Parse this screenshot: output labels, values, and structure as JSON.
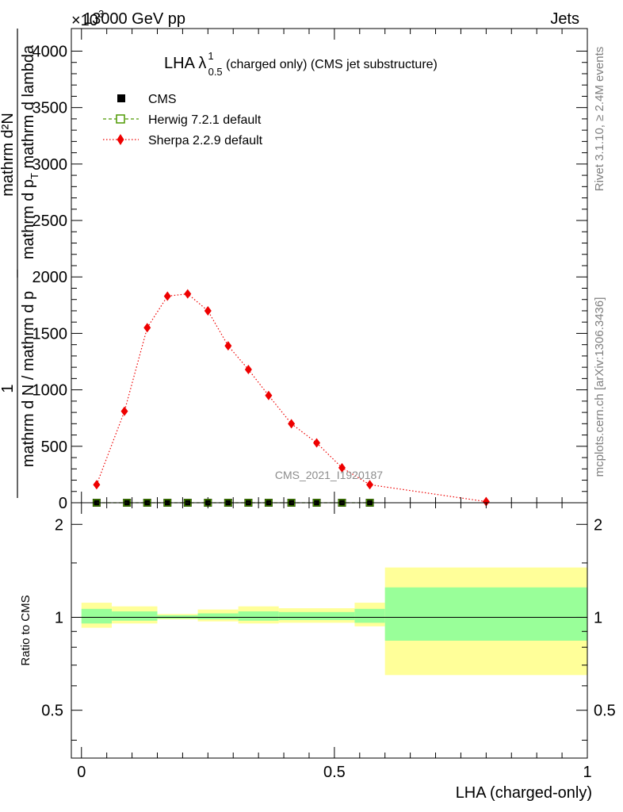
{
  "header": {
    "left": "13000 GeV pp",
    "right": "Jets",
    "exponent": "×10",
    "exponent_power": "3"
  },
  "side_labels": {
    "top": "Rivet 3.1.10, ≥ 2.4M events",
    "bottom": "mcplots.cern.ch [arXiv:1306.3436]"
  },
  "watermark": "CMS_2021_I1920187",
  "chart_data": [
    {
      "type": "line",
      "title": {
        "main": "LHA λ",
        "sup": "1",
        "sub": "0.5",
        "rest": " (charged only) (CMS jet substructure)"
      },
      "ylabel": {
        "left_numerator": "1",
        "left_denominator": "mathrm d N / mathrm d p",
        "numerator": "mathrm d²N",
        "denominator_main": "mathrm d p",
        "denominator_sub": "T",
        "denominator_rest": " mathrm d lambda"
      },
      "ylim": [
        0,
        4200
      ],
      "yticks": [
        0,
        500,
        1000,
        1500,
        2000,
        2500,
        3000,
        3500,
        4000
      ],
      "ytick_labels": [
        "0",
        "500",
        "1000",
        "1500",
        "2000",
        "2500",
        "3000",
        "3500",
        "4000"
      ],
      "xlim": [
        -0.02,
        1.0
      ],
      "legend": {
        "placement": "top-left",
        "entries": [
          "CMS",
          "Herwig 7.2.1 default",
          "Sherpa 2.2.9 default"
        ]
      },
      "series": [
        {
          "name": "CMS",
          "color": "#000000",
          "marker": "filled-square",
          "x": [
            0.03,
            0.09,
            0.13,
            0.17,
            0.21,
            0.25,
            0.29,
            0.33,
            0.37,
            0.415,
            0.465,
            0.515,
            0.57
          ],
          "y": [
            0,
            0,
            0,
            0,
            0,
            0,
            0,
            0,
            0,
            0,
            0,
            0,
            0
          ]
        },
        {
          "name": "Herwig 7.2.1 default",
          "color": "#4d9900",
          "marker": "open-square",
          "line": "dashed",
          "x": [
            0.03,
            0.09,
            0.13,
            0.17,
            0.21,
            0.25,
            0.29,
            0.33,
            0.37,
            0.415,
            0.465,
            0.515,
            0.57
          ],
          "y": [
            0,
            0,
            0,
            0,
            0,
            0,
            0,
            0,
            0,
            0,
            0,
            0,
            0
          ]
        },
        {
          "name": "Sherpa 2.2.9 default",
          "color": "#ee0000",
          "marker": "diamond",
          "line": "dotted",
          "x": [
            0.03,
            0.085,
            0.13,
            0.17,
            0.21,
            0.25,
            0.29,
            0.33,
            0.37,
            0.415,
            0.465,
            0.515,
            0.57,
            0.8
          ],
          "y": [
            160,
            810,
            1550,
            1830,
            1850,
            1700,
            1390,
            1180,
            950,
            700,
            530,
            310,
            160,
            10
          ]
        }
      ]
    },
    {
      "type": "area",
      "ylabel": "Ratio to CMS",
      "xlabel": "LHA (charged-only)",
      "ylim": [
        0.35,
        2.35
      ],
      "yscale": "log",
      "yticks": [
        0.5,
        1,
        2
      ],
      "ytick_labels": [
        "0.5",
        "1",
        "2"
      ],
      "xlim": [
        -0.02,
        1.0
      ],
      "xticks": [
        0,
        0.5,
        1
      ],
      "xtick_labels": [
        "0",
        "0.5",
        "1"
      ],
      "bands": {
        "edges": [
          0.0,
          0.06,
          0.15,
          0.23,
          0.31,
          0.39,
          0.54,
          0.6,
          1.0
        ],
        "outer_lo": [
          0.925,
          0.955,
          0.985,
          0.97,
          0.955,
          0.96,
          0.935,
          0.65
        ],
        "outer_hi": [
          1.115,
          1.085,
          1.025,
          1.06,
          1.085,
          1.07,
          1.115,
          1.45
        ],
        "inner_lo": [
          0.955,
          0.975,
          0.99,
          0.985,
          0.975,
          0.98,
          0.96,
          0.84
        ],
        "inner_hi": [
          1.065,
          1.045,
          1.015,
          1.03,
          1.045,
          1.04,
          1.065,
          1.25
        ],
        "outer_color": "#ffff99",
        "inner_color": "#99ff99"
      },
      "reference_value": 1
    }
  ]
}
